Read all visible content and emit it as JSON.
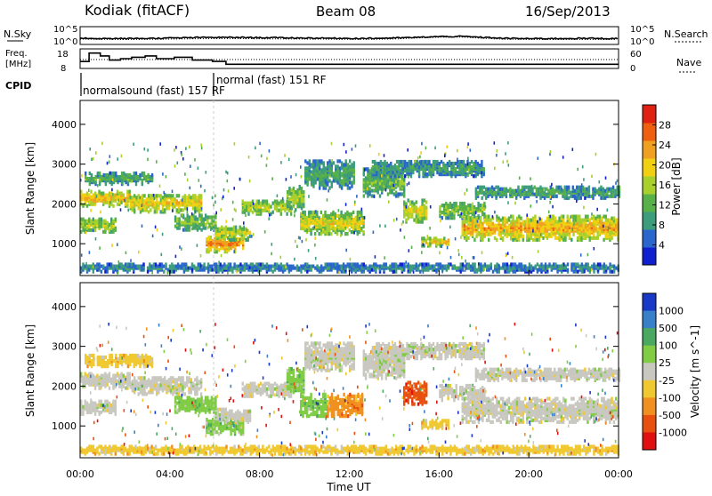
{
  "header": {
    "station": "Kodiak (fitACF)",
    "beam": "Beam 08",
    "date": "16/Sep/2013"
  },
  "noise_panel": {
    "left_label": "N.Sky",
    "right_label": "N.Search",
    "left_ticks": [
      "10^5",
      "10^0"
    ],
    "right_ticks": [
      "10^5",
      "10^0"
    ]
  },
  "freq_panel": {
    "left_label_line1": "Freq.",
    "left_label_line2": "[MHz]",
    "right_label": "Nave",
    "left_ticks": [
      "18",
      "8"
    ],
    "right_ticks": [
      "60",
      "0"
    ]
  },
  "cpid": {
    "label": "CPID",
    "mode1": "normalsound (fast) 157 RF",
    "mode2": "normal (fast) 151 RF"
  },
  "colors": {
    "power_scale": [
      "#1020d0",
      "#2a66cc",
      "#3c9c7c",
      "#58b048",
      "#a8d02c",
      "#f0d010",
      "#f0a020",
      "#ee6010",
      "#e02010"
    ],
    "velocity_scale": [
      "#1838c8",
      "#3880c8",
      "#4aa860",
      "#80cc44",
      "#c8c8c0",
      "#f0c830",
      "#f09020",
      "#e85010",
      "#e01010"
    ]
  },
  "chart_data": [
    {
      "type": "heatmap",
      "name": "power",
      "ylabel": "Slant Range [km]",
      "yticks": [
        "1000",
        "2000",
        "3000",
        "4000"
      ],
      "ylim": [
        200,
        4600
      ],
      "colorbar_label": "Power [dB]",
      "colorbar_ticks": [
        "4",
        "8",
        "12",
        "16",
        "20",
        "24",
        "28"
      ],
      "colorbar_range": [
        0,
        32
      ],
      "bands": [
        {
          "t0": 0.0,
          "t1": 2.2,
          "r0": 1950,
          "r1": 2350,
          "level": 0.72
        },
        {
          "t0": 0.0,
          "t1": 1.6,
          "r0": 1300,
          "r1": 1650,
          "level": 0.55
        },
        {
          "t0": 0.2,
          "t1": 3.2,
          "r0": 2500,
          "r1": 2800,
          "level": 0.35
        },
        {
          "t0": 2.2,
          "t1": 5.4,
          "r0": 1800,
          "r1": 2250,
          "level": 0.68
        },
        {
          "t0": 4.2,
          "t1": 6.0,
          "r0": 1350,
          "r1": 1750,
          "level": 0.45
        },
        {
          "t0": 5.6,
          "t1": 7.3,
          "r0": 800,
          "r1": 1200,
          "level": 0.84
        },
        {
          "t0": 6.0,
          "t1": 7.6,
          "r0": 1100,
          "r1": 1450,
          "level": 0.58
        },
        {
          "t0": 7.2,
          "t1": 9.4,
          "r0": 1750,
          "r1": 2100,
          "level": 0.55
        },
        {
          "t0": 9.2,
          "t1": 10.0,
          "r0": 1850,
          "r1": 2450,
          "level": 0.5
        },
        {
          "t0": 9.8,
          "t1": 12.6,
          "r0": 1250,
          "r1": 1800,
          "level": 0.62
        },
        {
          "t0": 10.0,
          "t1": 12.2,
          "r0": 2400,
          "r1": 3100,
          "level": 0.33
        },
        {
          "t0": 12.6,
          "t1": 14.4,
          "r0": 2200,
          "r1": 2900,
          "level": 0.42
        },
        {
          "t0": 14.4,
          "t1": 15.4,
          "r0": 1550,
          "r1": 2100,
          "level": 0.62
        },
        {
          "t0": 15.2,
          "t1": 16.4,
          "r0": 950,
          "r1": 1150,
          "level": 0.7
        },
        {
          "t0": 16.0,
          "t1": 18.0,
          "r0": 1650,
          "r1": 2050,
          "level": 0.48
        },
        {
          "t0": 17.0,
          "t1": 24.0,
          "r0": 1100,
          "r1": 1700,
          "level": 0.76
        },
        {
          "t0": 17.6,
          "t1": 24.0,
          "r0": 2150,
          "r1": 2450,
          "level": 0.32
        },
        {
          "t0": 13.0,
          "t1": 18.0,
          "r0": 2700,
          "r1": 3100,
          "level": 0.3
        },
        {
          "t0": 0.0,
          "t1": 24.0,
          "r0": 300,
          "r1": 500,
          "level": 0.22
        }
      ]
    },
    {
      "type": "heatmap",
      "name": "velocity",
      "ylabel": "Slant Range [km]",
      "yticks": [
        "1000",
        "2000",
        "3000",
        "4000"
      ],
      "ylim": [
        200,
        4600
      ],
      "xlabel": "Time UT",
      "xticks": [
        "00:00",
        "04:00",
        "08:00",
        "12:00",
        "16:00",
        "20:00",
        "00:00"
      ],
      "colorbar_label": "Velocity [m s^-1]",
      "colorbar_ticks": [
        "1000",
        "500",
        "100",
        "25",
        "-25",
        "-100",
        "-500",
        "-1000"
      ],
      "bands": [
        {
          "t0": 0.0,
          "t1": 2.2,
          "r0": 1950,
          "r1": 2350,
          "level": 4
        },
        {
          "t0": 0.0,
          "t1": 1.6,
          "r0": 1300,
          "r1": 1650,
          "level": 4
        },
        {
          "t0": 0.2,
          "t1": 3.2,
          "r0": 2500,
          "r1": 2800,
          "level": 5
        },
        {
          "t0": 2.2,
          "t1": 5.4,
          "r0": 1800,
          "r1": 2250,
          "level": 4
        },
        {
          "t0": 4.2,
          "t1": 6.0,
          "r0": 1350,
          "r1": 1750,
          "level": 3
        },
        {
          "t0": 5.6,
          "t1": 7.3,
          "r0": 800,
          "r1": 1200,
          "level": 3
        },
        {
          "t0": 6.0,
          "t1": 7.6,
          "r0": 1100,
          "r1": 1450,
          "level": 4
        },
        {
          "t0": 7.2,
          "t1": 9.4,
          "r0": 1750,
          "r1": 2100,
          "level": 4
        },
        {
          "t0": 9.2,
          "t1": 10.0,
          "r0": 1850,
          "r1": 2450,
          "level": 3
        },
        {
          "t0": 9.8,
          "t1": 11.0,
          "r0": 1250,
          "r1": 1800,
          "level": 3
        },
        {
          "t0": 11.0,
          "t1": 12.6,
          "r0": 1250,
          "r1": 1800,
          "level": 6
        },
        {
          "t0": 10.0,
          "t1": 12.2,
          "r0": 2400,
          "r1": 3100,
          "level": 4
        },
        {
          "t0": 12.6,
          "t1": 14.4,
          "r0": 2200,
          "r1": 2900,
          "level": 4
        },
        {
          "t0": 14.4,
          "t1": 15.4,
          "r0": 1550,
          "r1": 2100,
          "level": 7
        },
        {
          "t0": 15.2,
          "t1": 16.4,
          "r0": 950,
          "r1": 1150,
          "level": 5
        },
        {
          "t0": 16.0,
          "t1": 18.0,
          "r0": 1650,
          "r1": 2050,
          "level": 4
        },
        {
          "t0": 17.0,
          "t1": 24.0,
          "r0": 1100,
          "r1": 1700,
          "level": 4
        },
        {
          "t0": 17.6,
          "t1": 24.0,
          "r0": 2150,
          "r1": 2450,
          "level": 4
        },
        {
          "t0": 13.0,
          "t1": 18.0,
          "r0": 2700,
          "r1": 3100,
          "level": 4
        },
        {
          "t0": 0.0,
          "t1": 24.0,
          "r0": 300,
          "r1": 500,
          "level": 5
        }
      ]
    }
  ],
  "noise_series": {
    "sky_level": [
      0.65,
      0.6,
      0.6,
      0.62,
      0.65,
      0.7,
      0.72,
      0.72,
      0.7,
      0.68,
      0.66,
      0.64,
      0.62,
      0.62,
      0.66,
      0.72,
      0.8,
      0.82,
      0.72,
      0.62,
      0.6,
      0.6,
      0.62,
      0.62,
      0.6
    ],
    "search_level": [
      0.55,
      0.52,
      0.5,
      0.52,
      0.55,
      0.58,
      0.6,
      0.6,
      0.58,
      0.56,
      0.55,
      0.54,
      0.52,
      0.52,
      0.56,
      0.66,
      0.74,
      0.76,
      0.62,
      0.52,
      0.5,
      0.5,
      0.5,
      0.5,
      0.5
    ]
  },
  "freq_series": {
    "hours": [
      0,
      0.4,
      0.9,
      1.3,
      1.8,
      2.3,
      2.9,
      3.4,
      4.2,
      5.0,
      5.9,
      6.5,
      24
    ],
    "mhz": [
      11,
      17,
      15,
      12,
      13,
      14,
      15,
      13,
      14,
      12,
      11,
      9,
      9
    ]
  }
}
